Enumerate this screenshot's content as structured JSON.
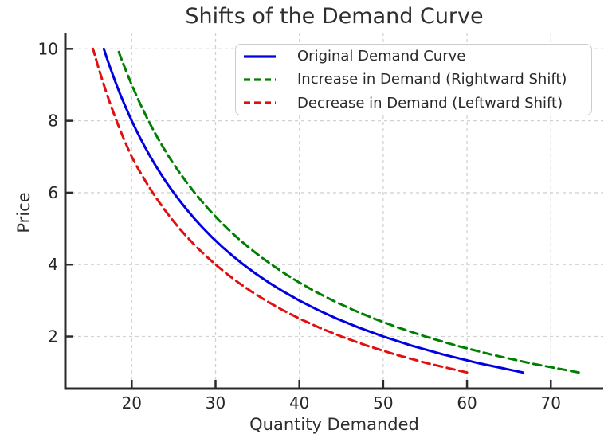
{
  "chart_data": {
    "type": "line",
    "title": "Shifts of the Demand Curve",
    "xlabel": "Quantity Demanded",
    "ylabel": "Price",
    "xlim": [
      12.08,
      76.25
    ],
    "ylim": [
      0.55,
      10.45
    ],
    "xticks": [
      20,
      30,
      40,
      50,
      60,
      70
    ],
    "yticks": [
      2,
      4,
      6,
      8,
      10
    ],
    "grid": true,
    "grid_color": "#d2d2d2",
    "axis_color": "#2a2a2a",
    "legend_position": "upper right",
    "price_values": [
      1,
      1.25,
      1.5,
      1.75,
      2,
      2.25,
      2.5,
      2.75,
      3,
      3.25,
      3.5,
      3.75,
      4,
      4.25,
      4.5,
      4.75,
      5,
      5.25,
      5.5,
      5.75,
      6,
      6.25,
      6.5,
      6.75,
      7,
      7.25,
      7.5,
      7.75,
      8,
      8.25,
      8.5,
      8.75,
      9,
      9.25,
      9.5,
      9.75,
      10
    ],
    "series": [
      {
        "name": "Original Demand Curve",
        "color": "#0000e0",
        "line_style": "solid",
        "quantity": [
          66.67,
          61.54,
          57.14,
          53.33,
          50.0,
          47.06,
          44.44,
          42.11,
          40.0,
          38.1,
          36.36,
          34.78,
          33.33,
          32.0,
          30.77,
          29.63,
          28.57,
          27.59,
          26.67,
          25.81,
          25.0,
          24.24,
          23.53,
          22.86,
          22.22,
          21.62,
          21.05,
          20.51,
          20.0,
          19.51,
          19.05,
          18.6,
          18.18,
          17.78,
          17.39,
          17.02,
          16.67
        ]
      },
      {
        "name": "Increase in Demand (Rightward Shift)",
        "color": "#008000",
        "line_style": "dashed",
        "quantity": [
          73.33,
          67.69,
          62.86,
          58.67,
          55.0,
          51.76,
          48.89,
          46.32,
          44.0,
          41.9,
          40.0,
          38.26,
          36.67,
          35.2,
          33.85,
          32.59,
          31.43,
          30.34,
          29.33,
          28.39,
          27.5,
          26.67,
          25.88,
          25.14,
          24.44,
          23.78,
          23.16,
          22.56,
          22.0,
          21.46,
          20.95,
          20.47,
          20.0,
          19.56,
          19.13,
          18.72,
          18.33
        ]
      },
      {
        "name": "Decrease in Demand (Leftward Shift)",
        "color": "#e01010",
        "line_style": "dashed",
        "quantity": [
          60.0,
          55.38,
          51.43,
          48.0,
          45.0,
          42.35,
          40.0,
          37.89,
          36.0,
          34.29,
          32.73,
          31.3,
          30.0,
          28.8,
          27.69,
          26.67,
          25.71,
          24.83,
          24.0,
          23.23,
          22.5,
          21.82,
          21.18,
          20.57,
          20.0,
          19.51,
          19.05,
          18.6,
          18.18,
          17.78,
          17.39,
          17.02,
          16.67,
          16.33,
          16.0,
          15.69,
          15.38
        ]
      }
    ]
  }
}
